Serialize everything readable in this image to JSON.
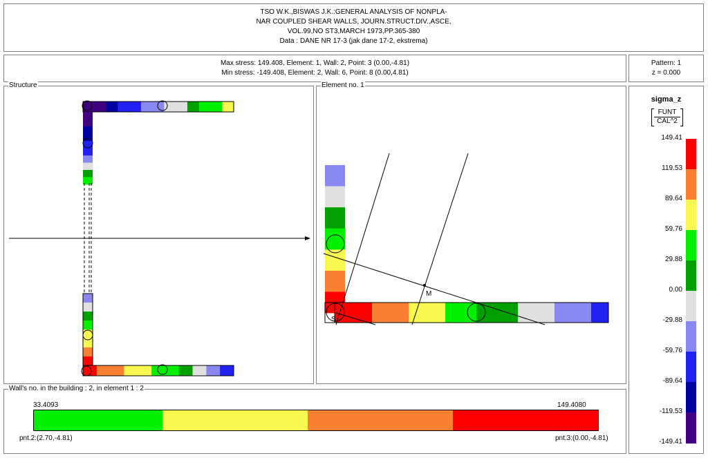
{
  "header": {
    "lines": [
      "TSO W.K.,BISWAS J.K.:GENERAL ANALYSIS OF NONPLA-",
      "NAR COUPLED SHEAR WALLS, JOURN.STRUCT.DIV.,ASCE,",
      "VOL.99,NO ST3,MARCH 1973,PP.365-380",
      "Data :  DANE NR 17-3 (jak dane 17-2, ekstrema)"
    ]
  },
  "stress_info": {
    "max": "Max stress: 149.408,   Element: 1,   Wall: 2,   Point: 3 (0.00,-4.81)",
    "min": "Min stress: -149.408,   Element: 2,   Wall: 6,   Point: 8 (0.00,4.81)"
  },
  "pattern_info": {
    "pattern": "Pattern: 1",
    "z": "z = 0.000"
  },
  "structure_panel": {
    "title": "Structure"
  },
  "element_panel": {
    "title": "Element no. 1",
    "point_m": "M",
    "point_s": "S"
  },
  "wall_panel": {
    "title": "Wall's no. in the building :  2,    in element 1 :  2",
    "left_value": "33.4093",
    "right_value": "149.4080",
    "left_point": "pnt.2:(2.70,-4.81)",
    "right_point": "pnt.3:(0.00,-4.81)"
  },
  "legend": {
    "title": "sigma_z",
    "unit_top": "FUNT",
    "unit_bottom": "CAL^2",
    "labels": [
      "149.41",
      "119.53",
      "89.64",
      "59.76",
      "29.88",
      "0.00",
      "-29.88",
      "-59.76",
      "-89.64",
      "-119.53",
      "-149.41"
    ],
    "colors": [
      "#ff0000",
      "#ff0000",
      "#f88030",
      "#f88030",
      "#f8f850",
      "#f8f850",
      "#00f000",
      "#00f000",
      "#00a000",
      "#00a000",
      "#e0e0e0",
      "#e0e0e0",
      "#8888f0",
      "#8888f0",
      "#2020f0",
      "#2020f0",
      "#0000a0",
      "#0000a0",
      "#400080",
      "#400080"
    ]
  },
  "colors": {
    "red": "#ff0000",
    "orange": "#f88030",
    "yellow": "#f8f850",
    "green": "#00f000",
    "darkgreen": "#00a000",
    "gray": "#e0e0e0",
    "lightblue": "#8888f0",
    "blue": "#2020f0",
    "darkblue": "#0000a0",
    "purple": "#400080"
  }
}
